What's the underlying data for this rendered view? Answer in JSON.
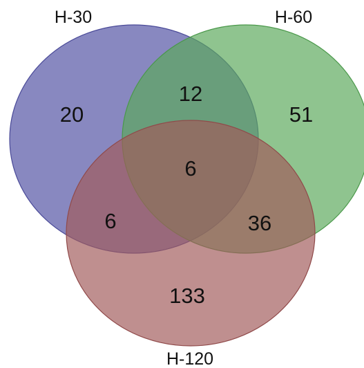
{
  "sets": [
    {
      "key": "h30",
      "label": "H-30",
      "fill": "#5a5aa8",
      "stroke": "#4a4a98",
      "opacity": 0.72
    },
    {
      "key": "h60",
      "label": "H-60",
      "fill": "#5aa85a",
      "stroke": "#4a984a",
      "opacity": 0.68
    },
    {
      "key": "h120",
      "label": "H-120",
      "fill": "#a05a5a",
      "stroke": "#904a4a",
      "opacity": 0.68
    }
  ],
  "regions": {
    "h30_only": "20",
    "h30_h60": "12",
    "h60_only": "51",
    "all_three": "6",
    "h30_h120": "6",
    "h60_h120": "36",
    "h120_only": "133"
  }
}
